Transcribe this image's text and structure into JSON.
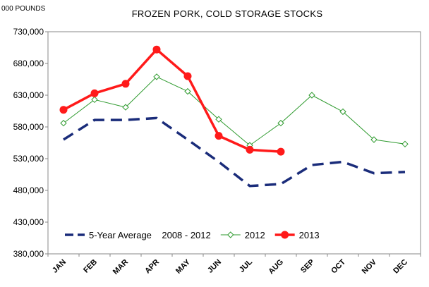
{
  "chart_data": {
    "type": "line",
    "title": "FROZEN PORK, COLD STORAGE STOCKS",
    "unit_label": "000 POUNDS",
    "xlabel": "",
    "ylabel": "",
    "ylim": [
      380000,
      730000
    ],
    "yticks": [
      380000,
      430000,
      480000,
      530000,
      580000,
      630000,
      680000,
      730000
    ],
    "ytick_labels": [
      "380,000",
      "430,000",
      "480,000",
      "530,000",
      "580,000",
      "630,000",
      "680,000",
      "730,000"
    ],
    "categories": [
      "JAN",
      "FEB",
      "MAR",
      "APR",
      "MAY",
      "JUN",
      "JUL",
      "AUG",
      "SEP",
      "OCT",
      "NOV",
      "DEC"
    ],
    "grid": false,
    "legend_position": "bottom-inside",
    "series": [
      {
        "name": "5-Year Average",
        "legend_label": "5-Year Average    2008 - 2012",
        "color": "#1a2c7a",
        "style": "dashed",
        "marker": "none",
        "values": [
          560000,
          591000,
          591000,
          594000,
          560000,
          525000,
          487000,
          490000,
          520000,
          525000,
          507000,
          509000
        ]
      },
      {
        "name": "2012",
        "legend_label": "2012",
        "color": "#2e9a2e",
        "style": "solid",
        "marker": "open-diamond",
        "values": [
          586000,
          623000,
          611000,
          659000,
          636000,
          592000,
          551000,
          586000,
          630000,
          604000,
          560000,
          553000
        ]
      },
      {
        "name": "2013",
        "legend_label": "2013",
        "color": "#ff1a1a",
        "style": "solid",
        "marker": "filled-circle",
        "values": [
          607000,
          633000,
          648000,
          702000,
          660000,
          566000,
          544000,
          541000,
          null,
          null,
          null,
          null
        ]
      }
    ]
  }
}
